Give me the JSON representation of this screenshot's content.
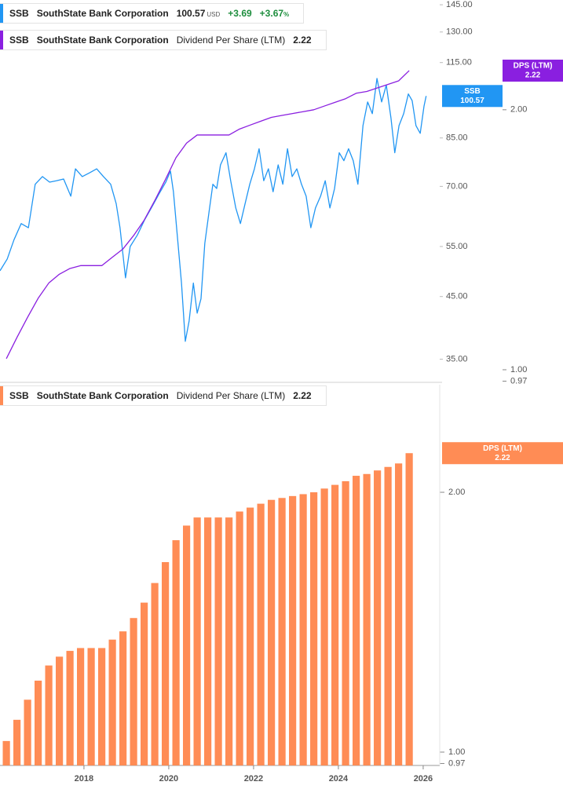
{
  "chart_data": [
    {
      "type": "line",
      "log_scale": true,
      "legend_rows": [
        {
          "ticker": "SSB",
          "company": "SouthState Bank Corporation",
          "currency": "USD",
          "change": "+3.69",
          "change_pct": "+3.67",
          "pct_unit": "%"
        },
        {
          "ticker": "SSB",
          "company": "SouthState Bank Corporation",
          "metric": "Dividend Per Share (LTM)"
        }
      ],
      "xlim": [
        2016.02,
        2026.39
      ],
      "ylim": [
        31.9,
        147.8
      ],
      "yticks": [
        {
          "value": 35,
          "label": "35.00"
        },
        {
          "value": 45,
          "label": "45.00"
        },
        {
          "value": 55,
          "label": "55.00"
        },
        {
          "value": 70,
          "label": "70.00"
        },
        {
          "value": 85,
          "label": "85.00"
        },
        {
          "value": 115,
          "label": "115.00"
        },
        {
          "value": 130,
          "label": "130.00"
        },
        {
          "value": 145,
          "label": "145.00"
        }
      ],
      "y2lim": [
        0.967,
        2.68
      ],
      "y2ticks": [
        {
          "value": 0.97,
          "label": "0.97"
        },
        {
          "value": 1,
          "label": "1.00"
        },
        {
          "value": 2,
          "label": "2.00"
        }
      ],
      "series": [
        {
          "name": "SSB",
          "color": "#2196f3",
          "x": [
            2016.02,
            2016.19,
            2016.35,
            2016.52,
            2016.69,
            2016.85,
            2017.02,
            2017.19,
            2017.35,
            2017.52,
            2017.69,
            2017.8,
            2017.96,
            2018.13,
            2018.3,
            2018.46,
            2018.63,
            2018.76,
            2018.85,
            2018.98,
            2019.09,
            2019.26,
            2019.43,
            2019.59,
            2019.76,
            2019.93,
            2020.04,
            2020.11,
            2020.2,
            2020.3,
            2020.39,
            2020.48,
            2020.58,
            2020.67,
            2020.76,
            2020.85,
            2020.95,
            2021.04,
            2021.13,
            2021.22,
            2021.35,
            2021.46,
            2021.58,
            2021.69,
            2021.8,
            2021.91,
            2022.02,
            2022.13,
            2022.24,
            2022.35,
            2022.46,
            2022.58,
            2022.69,
            2022.8,
            2022.91,
            2023.02,
            2023.13,
            2023.24,
            2023.35,
            2023.46,
            2023.58,
            2023.69,
            2023.8,
            2023.91,
            2024.02,
            2024.13,
            2024.24,
            2024.35,
            2024.46,
            2024.58,
            2024.69,
            2024.8,
            2024.91,
            2025.02,
            2025.13,
            2025.24,
            2025.33,
            2025.43,
            2025.54,
            2025.65,
            2025.74,
            2025.83,
            2025.93,
            2026.02,
            2026.07
          ],
          "values": [
            49.9,
            52.3,
            56.5,
            60.3,
            59.3,
            70.6,
            72.8,
            71.2,
            71.6,
            72.1,
            67.3,
            75.1,
            72.8,
            73.9,
            75.1,
            72.8,
            70.6,
            65.3,
            59.3,
            48.5,
            55.0,
            57.6,
            61.2,
            64.2,
            67.7,
            71.2,
            74.4,
            68.5,
            57.6,
            47.5,
            37.6,
            40.8,
            47.5,
            42.1,
            44.6,
            55.7,
            63.2,
            70.6,
            69.4,
            76.3,
            80.1,
            71.6,
            64.2,
            60.3,
            65.3,
            70.6,
            75.1,
            81.4,
            71.6,
            75.1,
            68.5,
            76.3,
            70.6,
            81.4,
            72.8,
            75.1,
            70.6,
            67.3,
            59.3,
            64.2,
            67.3,
            71.6,
            64.2,
            69.4,
            80.1,
            77.6,
            81.4,
            77.6,
            70.6,
            89.3,
            98.2,
            93.7,
            107.9,
            98.2,
            105.1,
            92.1,
            80.1,
            89.3,
            93.7,
            101.4,
            98.7,
            89.3,
            86.6,
            96.6,
            100.57
          ]
        },
        {
          "name": "DPS (LTM)",
          "color": "#8a1fe0",
          "axis": "y2",
          "x": [
            2016.17,
            2016.42,
            2016.67,
            2016.92,
            2017.17,
            2017.42,
            2017.67,
            2017.92,
            2018.17,
            2018.42,
            2018.67,
            2018.92,
            2019.17,
            2019.42,
            2019.67,
            2019.92,
            2020.17,
            2020.42,
            2020.67,
            2020.92,
            2021.17,
            2021.42,
            2021.67,
            2021.92,
            2022.17,
            2022.42,
            2022.67,
            2022.92,
            2023.17,
            2023.42,
            2023.67,
            2023.92,
            2024.17,
            2024.42,
            2024.67,
            2024.92,
            2025.17,
            2025.42,
            2025.67
          ],
          "values": [
            1.03,
            1.09,
            1.15,
            1.21,
            1.26,
            1.29,
            1.31,
            1.32,
            1.32,
            1.32,
            1.35,
            1.38,
            1.43,
            1.49,
            1.57,
            1.66,
            1.76,
            1.83,
            1.87,
            1.87,
            1.87,
            1.87,
            1.9,
            1.92,
            1.94,
            1.96,
            1.97,
            1.98,
            1.99,
            2.0,
            2.02,
            2.04,
            2.06,
            2.09,
            2.1,
            2.12,
            2.14,
            2.16,
            2.22
          ]
        }
      ]
    },
    {
      "type": "bar",
      "log_scale": true,
      "legend_rows": [
        {
          "ticker": "SSB",
          "company": "SouthState Bank Corporation",
          "metric": "Dividend Per Share (LTM)"
        }
      ],
      "xlim": [
        2016.02,
        2026.39
      ],
      "xticks": [
        2018,
        2020,
        2022,
        2024,
        2026
      ],
      "ylim": [
        0.965,
        2.665
      ],
      "yticks": [
        {
          "value": 0.97,
          "label": "0.97"
        },
        {
          "value": 1,
          "label": "1.00"
        },
        {
          "value": 2,
          "label": "2.00"
        }
      ],
      "series": [
        {
          "name": "DPS (LTM)",
          "color": "#ff8c55",
          "x": [
            2016.17,
            2016.42,
            2016.67,
            2016.92,
            2017.17,
            2017.42,
            2017.67,
            2017.92,
            2018.17,
            2018.42,
            2018.67,
            2018.92,
            2019.17,
            2019.42,
            2019.67,
            2019.92,
            2020.17,
            2020.42,
            2020.67,
            2020.92,
            2021.17,
            2021.42,
            2021.67,
            2021.92,
            2022.17,
            2022.42,
            2022.67,
            2022.92,
            2023.17,
            2023.42,
            2023.67,
            2023.92,
            2024.17,
            2024.42,
            2024.67,
            2024.92,
            2025.17,
            2025.42,
            2025.67
          ],
          "values": [
            1.03,
            1.09,
            1.15,
            1.21,
            1.26,
            1.29,
            1.31,
            1.32,
            1.32,
            1.32,
            1.35,
            1.38,
            1.43,
            1.49,
            1.57,
            1.66,
            1.76,
            1.83,
            1.87,
            1.87,
            1.87,
            1.87,
            1.9,
            1.92,
            1.94,
            1.96,
            1.97,
            1.98,
            1.99,
            2.0,
            2.02,
            2.04,
            2.06,
            2.09,
            2.1,
            2.12,
            2.14,
            2.16,
            2.22
          ]
        }
      ]
    }
  ]
}
